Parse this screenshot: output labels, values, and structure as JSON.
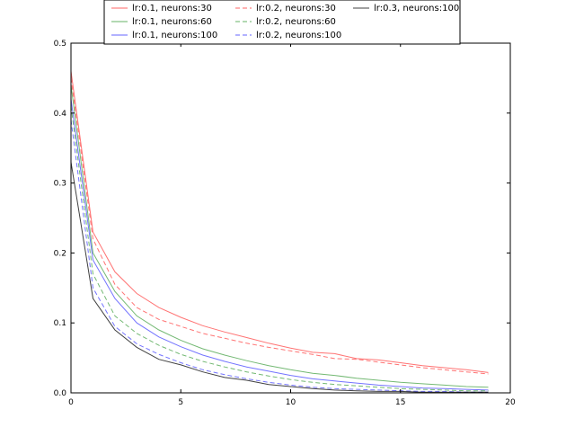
{
  "chart_data": {
    "type": "line",
    "title": "",
    "xlabel": "",
    "ylabel": "",
    "xlim": [
      0,
      20
    ],
    "ylim": [
      0,
      0.5
    ],
    "x_ticks": [
      "0",
      "5",
      "10",
      "15",
      "20"
    ],
    "y_ticks": [
      "0.0",
      "0.1",
      "0.2",
      "0.3",
      "0.4",
      "0.5"
    ],
    "grid": false,
    "legend_position": "top-center",
    "x": [
      0,
      1,
      2,
      3,
      4,
      5,
      6,
      7,
      8,
      9,
      10,
      11,
      12,
      13,
      14,
      15,
      16,
      17,
      18,
      19
    ],
    "series": [
      {
        "name": "lr:0.1, neurons:30",
        "color": "#ff0000",
        "dash": "solid",
        "values": [
          0.46,
          0.23,
          0.173,
          0.142,
          0.122,
          0.108,
          0.096,
          0.087,
          0.079,
          0.071,
          0.064,
          0.058,
          0.056,
          0.049,
          0.047,
          0.043,
          0.039,
          0.036,
          0.033,
          0.029
        ]
      },
      {
        "name": "lr:0.1, neurons:60",
        "color": "#008000",
        "dash": "solid",
        "values": [
          0.44,
          0.2,
          0.145,
          0.11,
          0.09,
          0.075,
          0.063,
          0.054,
          0.046,
          0.039,
          0.033,
          0.028,
          0.025,
          0.021,
          0.018,
          0.015,
          0.013,
          0.011,
          0.009,
          0.008
        ]
      },
      {
        "name": "lr:0.1, neurons:100",
        "color": "#0000ff",
        "dash": "solid",
        "values": [
          0.42,
          0.19,
          0.135,
          0.1,
          0.08,
          0.066,
          0.054,
          0.045,
          0.037,
          0.031,
          0.025,
          0.02,
          0.017,
          0.014,
          0.011,
          0.009,
          0.007,
          0.006,
          0.005,
          0.004
        ]
      },
      {
        "name": "lr:0.2, neurons:30",
        "color": "#ff0000",
        "dash": "dashed",
        "values": [
          0.45,
          0.22,
          0.155,
          0.122,
          0.105,
          0.095,
          0.085,
          0.078,
          0.071,
          0.065,
          0.06,
          0.055,
          0.049,
          0.048,
          0.044,
          0.04,
          0.036,
          0.033,
          0.03,
          0.027
        ]
      },
      {
        "name": "lr:0.2, neurons:60",
        "color": "#008000",
        "dash": "dashed",
        "values": [
          0.41,
          0.17,
          0.11,
          0.085,
          0.068,
          0.055,
          0.045,
          0.037,
          0.03,
          0.024,
          0.019,
          0.015,
          0.012,
          0.01,
          0.008,
          0.006,
          0.005,
          0.004,
          0.003,
          0.003
        ]
      },
      {
        "name": "lr:0.2, neurons:100",
        "color": "#0000ff",
        "dash": "dashed",
        "values": [
          0.39,
          0.15,
          0.095,
          0.07,
          0.055,
          0.043,
          0.033,
          0.026,
          0.02,
          0.015,
          0.011,
          0.008,
          0.006,
          0.005,
          0.004,
          0.003,
          0.002,
          0.002,
          0.001,
          0.001
        ]
      },
      {
        "name": "lr:0.3, neurons:100",
        "color": "#000000",
        "dash": "solid",
        "values": [
          0.33,
          0.135,
          0.09,
          0.065,
          0.048,
          0.04,
          0.03,
          0.022,
          0.018,
          0.012,
          0.009,
          0.006,
          0.004,
          0.003,
          0.002,
          0.002,
          0.001,
          0.001,
          0.001,
          0.001
        ]
      }
    ]
  }
}
